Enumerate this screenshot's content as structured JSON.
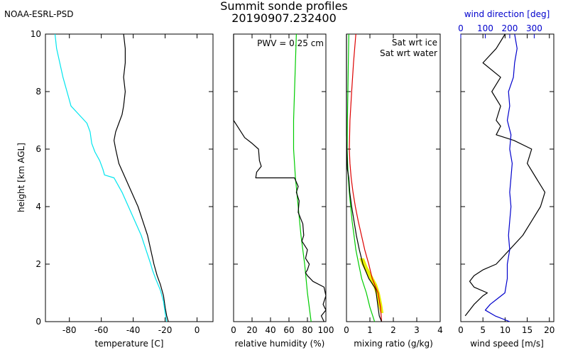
{
  "header": {
    "source": "NOAA-ESRL-PSD",
    "title": "Summit sonde profiles",
    "subtitle": "20190907.232400"
  },
  "colors": {
    "black": "#000000",
    "cyan": "#00e5ee",
    "green": "#00cc00",
    "red": "#dd0000",
    "yellow": "#e8f000",
    "blue": "#0000cc"
  },
  "chart_data": [
    {
      "type": "line",
      "id": "temperature",
      "xlabel": "temperature [C]",
      "ylabel": "height [km AGL]",
      "xlim": [
        -95,
        10
      ],
      "ylim": [
        0,
        10
      ],
      "xticks": [
        -80,
        -60,
        -40,
        -20,
        0
      ],
      "yticks": [
        0,
        2,
        4,
        6,
        8,
        10
      ],
      "grid": false,
      "series": [
        {
          "color": "#000000",
          "points": [
            [
              -18,
              0.0
            ],
            [
              -19,
              0.2
            ],
            [
              -20,
              0.5
            ],
            [
              -21,
              0.9
            ],
            [
              -23,
              1.3
            ],
            [
              -25,
              1.6
            ],
            [
              -27,
              2.0
            ],
            [
              -29,
              2.5
            ],
            [
              -31,
              3.0
            ],
            [
              -34,
              3.5
            ],
            [
              -37,
              4.0
            ],
            [
              -41,
              4.5
            ],
            [
              -45,
              5.0
            ],
            [
              -49,
              5.5
            ],
            [
              -51,
              6.0
            ],
            [
              -52,
              6.3
            ],
            [
              -51,
              6.6
            ],
            [
              -49,
              6.9
            ],
            [
              -47,
              7.2
            ],
            [
              -46,
              7.5
            ],
            [
              -45,
              8.0
            ],
            [
              -46,
              8.5
            ],
            [
              -45,
              9.0
            ],
            [
              -45,
              9.5
            ],
            [
              -46,
              10.0
            ]
          ]
        },
        {
          "color": "#00e5ee",
          "points": [
            [
              -19,
              0.0
            ],
            [
              -20,
              0.3
            ],
            [
              -21,
              0.7
            ],
            [
              -23,
              1.1
            ],
            [
              -26,
              1.5
            ],
            [
              -28,
              1.8
            ],
            [
              -29,
              2.0
            ],
            [
              -32,
              2.5
            ],
            [
              -35,
              3.0
            ],
            [
              -39,
              3.5
            ],
            [
              -43,
              4.0
            ],
            [
              -47,
              4.5
            ],
            [
              -52,
              5.0
            ],
            [
              -58,
              5.1
            ],
            [
              -59,
              5.3
            ],
            [
              -61,
              5.6
            ],
            [
              -64,
              5.9
            ],
            [
              -66,
              6.2
            ],
            [
              -67,
              6.6
            ],
            [
              -69,
              6.9
            ],
            [
              -74,
              7.2
            ],
            [
              -79,
              7.5
            ],
            [
              -81,
              7.9
            ],
            [
              -84,
              8.5
            ],
            [
              -86,
              9.0
            ],
            [
              -88,
              9.5
            ],
            [
              -89,
              10.0
            ]
          ]
        }
      ]
    },
    {
      "type": "line",
      "id": "relative_humidity",
      "xlabel": "relative humidity (%)",
      "xlim": [
        0,
        100
      ],
      "ylim": [
        0,
        10
      ],
      "xticks": [
        0,
        20,
        40,
        60,
        80,
        100
      ],
      "annotation": "PWV = 0.25 cm",
      "grid": false,
      "series": [
        {
          "color": "#00cc00",
          "points": [
            [
              84,
              0.0
            ],
            [
              80,
              1.0
            ],
            [
              77,
              2.0
            ],
            [
              73,
              3.0
            ],
            [
              70,
              4.0
            ],
            [
              67,
              5.0
            ],
            [
              65,
              6.0
            ],
            [
              65,
              7.0
            ],
            [
              66,
              8.0
            ],
            [
              67,
              9.0
            ],
            [
              68,
              10.0
            ]
          ]
        },
        {
          "color": "#000000",
          "points": [
            [
              98,
              0.0
            ],
            [
              95,
              0.2
            ],
            [
              100,
              0.4
            ],
            [
              97,
              0.6
            ],
            [
              100,
              0.9
            ],
            [
              98,
              1.2
            ],
            [
              86,
              1.4
            ],
            [
              80,
              1.6
            ],
            [
              78,
              1.7
            ],
            [
              80,
              1.8
            ],
            [
              82,
              2.0
            ],
            [
              78,
              2.2
            ],
            [
              80,
              2.5
            ],
            [
              74,
              2.8
            ],
            [
              76,
              3.0
            ],
            [
              75,
              3.4
            ],
            [
              70,
              3.8
            ],
            [
              71,
              4.2
            ],
            [
              68,
              4.5
            ],
            [
              70,
              4.7
            ],
            [
              66,
              5.0
            ],
            [
              24,
              5.0
            ],
            [
              25,
              5.2
            ],
            [
              30,
              5.4
            ],
            [
              28,
              5.6
            ],
            [
              27,
              6.0
            ],
            [
              20,
              6.2
            ],
            [
              12,
              6.4
            ],
            [
              8,
              6.6
            ],
            [
              4,
              6.8
            ],
            [
              0,
              7.0
            ],
            [
              0,
              10.0
            ]
          ]
        }
      ]
    },
    {
      "type": "line",
      "id": "mixing_ratio",
      "xlabel": "mixing ratio (g/kg)",
      "xlim": [
        0,
        4
      ],
      "ylim": [
        0,
        10
      ],
      "xticks": [
        0,
        1,
        2,
        3,
        4
      ],
      "legend": [
        "Sat wrt ice",
        "Sat wrt water"
      ],
      "grid": false,
      "series": [
        {
          "name": "Sat wrt ice",
          "color": "#00cc00",
          "points": [
            [
              1.2,
              0.0
            ],
            [
              1.0,
              0.5
            ],
            [
              0.85,
              1.0
            ],
            [
              0.65,
              1.5
            ],
            [
              0.52,
              2.0
            ],
            [
              0.4,
              2.5
            ],
            [
              0.32,
              3.0
            ],
            [
              0.24,
              3.5
            ],
            [
              0.18,
              4.0
            ],
            [
              0.12,
              4.5
            ],
            [
              0.08,
              5.0
            ],
            [
              0.05,
              5.5
            ],
            [
              0.03,
              6.0
            ],
            [
              0.04,
              7.0
            ],
            [
              0.06,
              8.0
            ],
            [
              0.08,
              9.0
            ],
            [
              0.1,
              10.0
            ]
          ]
        },
        {
          "name": "Sat wrt water",
          "color": "#dd0000",
          "points": [
            [
              1.5,
              0.0
            ],
            [
              1.45,
              0.5
            ],
            [
              1.35,
              1.0
            ],
            [
              1.1,
              1.5
            ],
            [
              0.95,
              2.0
            ],
            [
              0.78,
              2.5
            ],
            [
              0.64,
              3.0
            ],
            [
              0.5,
              3.5
            ],
            [
              0.38,
              4.0
            ],
            [
              0.28,
              4.5
            ],
            [
              0.2,
              5.0
            ],
            [
              0.15,
              5.5
            ],
            [
              0.12,
              6.0
            ],
            [
              0.15,
              7.0
            ],
            [
              0.22,
              8.0
            ],
            [
              0.3,
              9.0
            ],
            [
              0.4,
              10.0
            ]
          ]
        },
        {
          "color": "#000000",
          "points": [
            [
              1.5,
              0.0
            ],
            [
              1.4,
              0.2
            ],
            [
              1.35,
              0.5
            ],
            [
              1.3,
              0.8
            ],
            [
              1.25,
              1.1
            ],
            [
              1.2,
              1.2
            ],
            [
              0.95,
              1.5
            ],
            [
              0.8,
              1.8
            ],
            [
              0.7,
              2.0
            ],
            [
              0.55,
              2.5
            ],
            [
              0.42,
              3.0
            ],
            [
              0.32,
              3.5
            ],
            [
              0.22,
              4.0
            ],
            [
              0.14,
              4.5
            ],
            [
              0.1,
              5.0
            ],
            [
              0.04,
              5.3
            ],
            [
              0.02,
              5.8
            ],
            [
              0.0,
              6.5
            ],
            [
              0.0,
              10.0
            ]
          ]
        }
      ]
    },
    {
      "type": "line",
      "id": "wind",
      "xlabel": "wind speed [m/s]",
      "x2label": "wind direction [deg]",
      "xlim": [
        0,
        21
      ],
      "x2lim": [
        0,
        380
      ],
      "ylim": [
        0,
        10
      ],
      "xticks": [
        0,
        5,
        10,
        15,
        20
      ],
      "x2ticks": [
        0,
        100,
        200,
        300
      ],
      "grid": false,
      "series": [
        {
          "name": "wind speed",
          "color": "#000000",
          "points": [
            [
              1,
              0.2
            ],
            [
              2,
              0.4
            ],
            [
              3,
              0.6
            ],
            [
              5,
              0.9
            ],
            [
              6,
              1.0
            ],
            [
              3,
              1.2
            ],
            [
              2,
              1.4
            ],
            [
              3,
              1.6
            ],
            [
              5,
              1.8
            ],
            [
              8,
              2.0
            ],
            [
              11,
              2.5
            ],
            [
              14,
              3.0
            ],
            [
              16,
              3.5
            ],
            [
              18,
              4.0
            ],
            [
              19,
              4.5
            ],
            [
              17,
              5.0
            ],
            [
              15,
              5.5
            ],
            [
              16,
              6.0
            ],
            [
              12,
              6.3
            ],
            [
              8,
              6.5
            ],
            [
              9,
              6.8
            ],
            [
              8,
              7.0
            ],
            [
              9,
              7.5
            ],
            [
              7,
              8.0
            ],
            [
              9,
              8.5
            ],
            [
              5,
              9.0
            ],
            [
              8,
              9.5
            ],
            [
              10,
              10.0
            ]
          ]
        },
        {
          "name": "wind direction",
          "color": "#0000cc",
          "points": [
            [
              200,
              0.0
            ],
            [
              140,
              0.2
            ],
            [
              100,
              0.4
            ],
            [
              120,
              0.6
            ],
            [
              150,
              0.8
            ],
            [
              180,
              1.0
            ],
            [
              190,
              1.5
            ],
            [
              190,
              2.0
            ],
            [
              200,
              2.5
            ],
            [
              195,
              3.0
            ],
            [
              200,
              3.5
            ],
            [
              205,
              4.0
            ],
            [
              200,
              4.5
            ],
            [
              205,
              5.0
            ],
            [
              210,
              5.5
            ],
            [
              200,
              6.0
            ],
            [
              205,
              6.5
            ],
            [
              190,
              7.0
            ],
            [
              200,
              7.5
            ],
            [
              195,
              8.0
            ],
            [
              215,
              8.5
            ],
            [
              220,
              9.0
            ],
            [
              230,
              9.5
            ],
            [
              220,
              10.0
            ]
          ]
        }
      ]
    }
  ]
}
